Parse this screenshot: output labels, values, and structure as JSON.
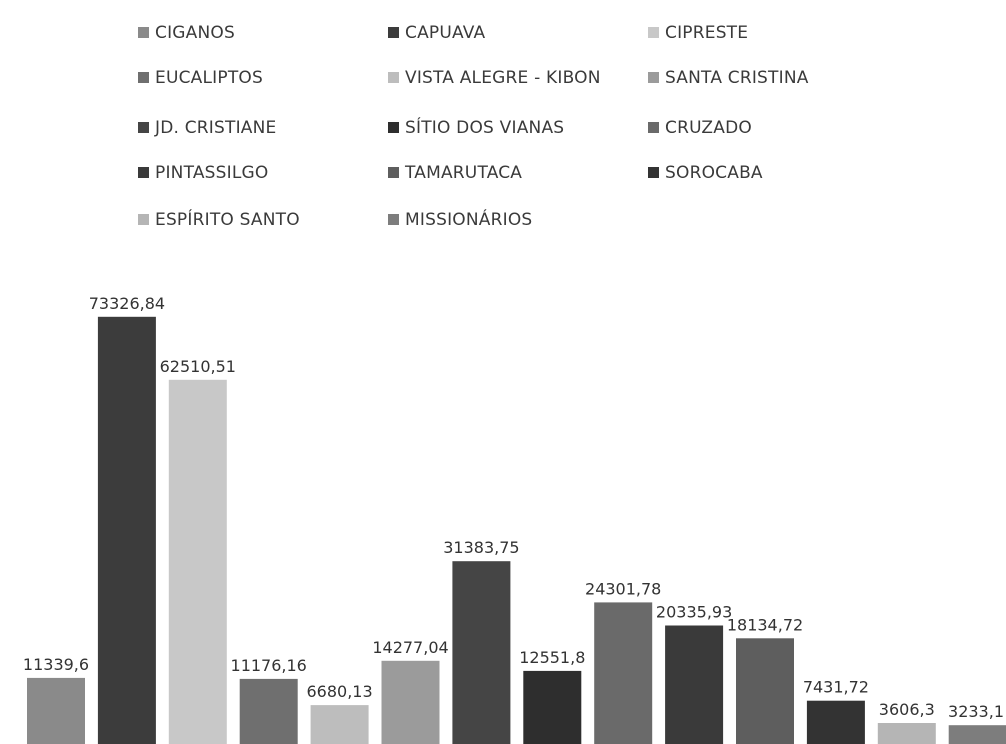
{
  "chart_data": {
    "type": "bar",
    "title": "",
    "xlabel": "",
    "ylabel": "",
    "ylim": [
      0,
      80000
    ],
    "grid": false,
    "legend_position": "top",
    "categories": [
      "CIGANOS",
      "CAPUAVA",
      "CIPRESTE",
      "EUCALIPTOS",
      "VISTA ALEGRE - KIBON",
      "SANTA CRISTINA",
      "JD. CRISTIANE",
      "SÍTIO DOS VIANAS",
      "CRUZADO",
      "PINTASSILGO",
      "TAMARUTACA",
      "SOROCABA",
      "ESPÍRITO SANTO",
      "MISSIONÁRIOS"
    ],
    "values": [
      11339.6,
      73326.84,
      62510.51,
      11176.16,
      6680.13,
      14277.04,
      31383.75,
      12551.8,
      24301.78,
      20335.93,
      18134.72,
      7431.72,
      3606.3,
      3233.1
    ],
    "data_labels": [
      "11339,6",
      "73326,84",
      "62510,51",
      "11176,16",
      "6680,13",
      "14277,04",
      "31383,75",
      "12551,8",
      "24301,78",
      "20335,93",
      "18134,72",
      "7431,72",
      "3606,3",
      "3233,1"
    ],
    "colors": [
      "#8a8a8a",
      "#3c3c3c",
      "#c8c8c8",
      "#6f6f6f",
      "#bdbdbd",
      "#9b9b9b",
      "#454545",
      "#2e2e2e",
      "#6a6a6a",
      "#3a3a3a",
      "#5e5e5e",
      "#333333",
      "#b5b5b5",
      "#7d7d7d"
    ]
  }
}
